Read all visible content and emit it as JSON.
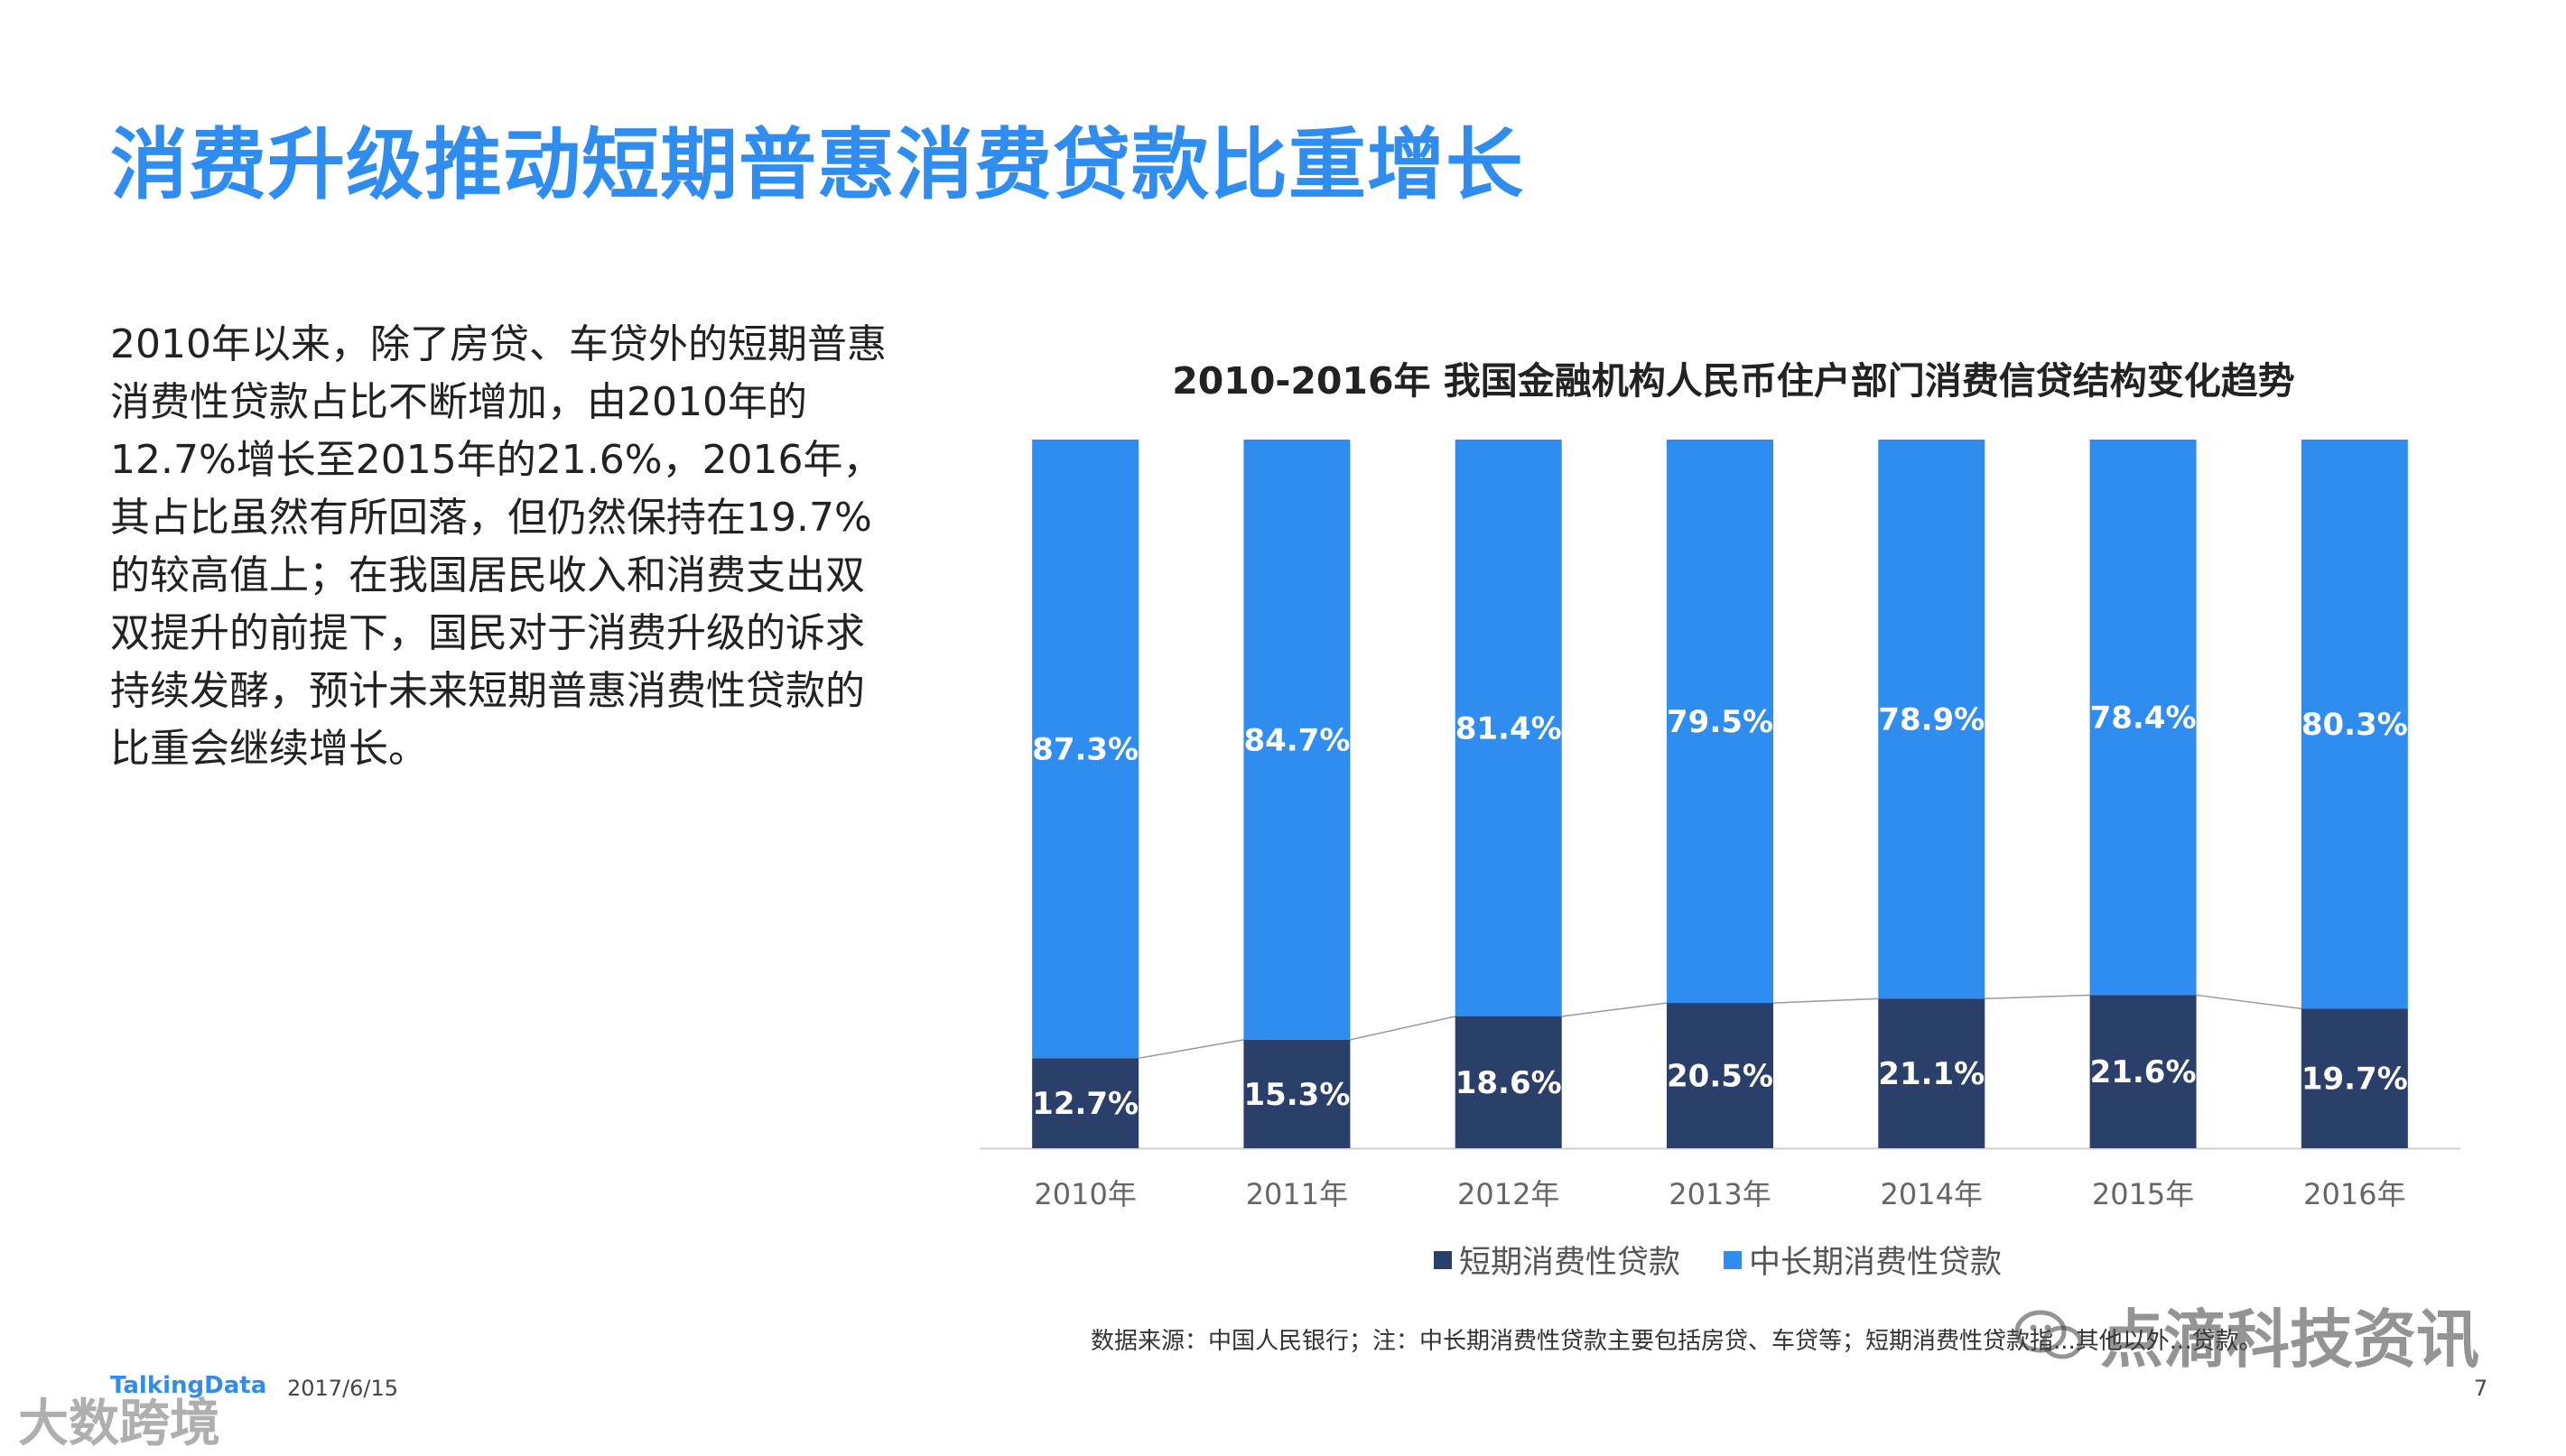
{
  "slide": {
    "title": "消费升级推动短期普惠消费贷款比重增长",
    "paragraph": "2010年以来，除了房贷、车贷外的短期普惠消费性贷款占比不断增加，由2010年的12.7%增长至2015年的21.6%，2016年，其占比虽然有所回落，但仍然保持在19.7%的较高值上；在我国居民收入和消费支出双双提升的前提下，国民对于消费升级的诉求持续发酵，预计未来短期普惠消费性贷款的比重会继续增长。",
    "source": "数据来源：中国人民银行；注：中长期消费性贷款主要包括房贷、车贷等；短期消费性贷款指...其他以外...贷款。",
    "brand": "TalkingData",
    "date": "2017/6/15",
    "page": "7",
    "watermark_right": "点滴科技资讯",
    "watermark_left": "大数跨境"
  },
  "colors": {
    "accent": "#2f8def",
    "short_term": "#2b3f6b",
    "long_term": "#2f8def"
  },
  "chart_data": {
    "type": "bar",
    "stacked": true,
    "title": "2010-2016年 我国金融机构人民币住户部门消费信贷结构变化趋势",
    "categories": [
      "2010年",
      "2011年",
      "2012年",
      "2013年",
      "2014年",
      "2015年",
      "2016年"
    ],
    "series": [
      {
        "name": "短期消费性贷款",
        "values": [
          12.7,
          15.3,
          18.6,
          20.5,
          21.1,
          21.6,
          19.7
        ]
      },
      {
        "name": "中长期消费性贷款",
        "values": [
          87.3,
          84.7,
          81.4,
          79.5,
          78.9,
          78.4,
          80.3
        ]
      }
    ],
    "data_labels": {
      "short": [
        "12.7%",
        "15.3%",
        "18.6%",
        "20.5%",
        "21.1%",
        "21.6%",
        "19.7%"
      ],
      "long": [
        "87.3%",
        "84.7%",
        "81.4%",
        "79.5%",
        "78.9%",
        "78.4%",
        "80.3%"
      ]
    },
    "ylim": [
      0,
      100
    ],
    "xlabel": "",
    "ylabel": "",
    "legend_position": "bottom"
  }
}
